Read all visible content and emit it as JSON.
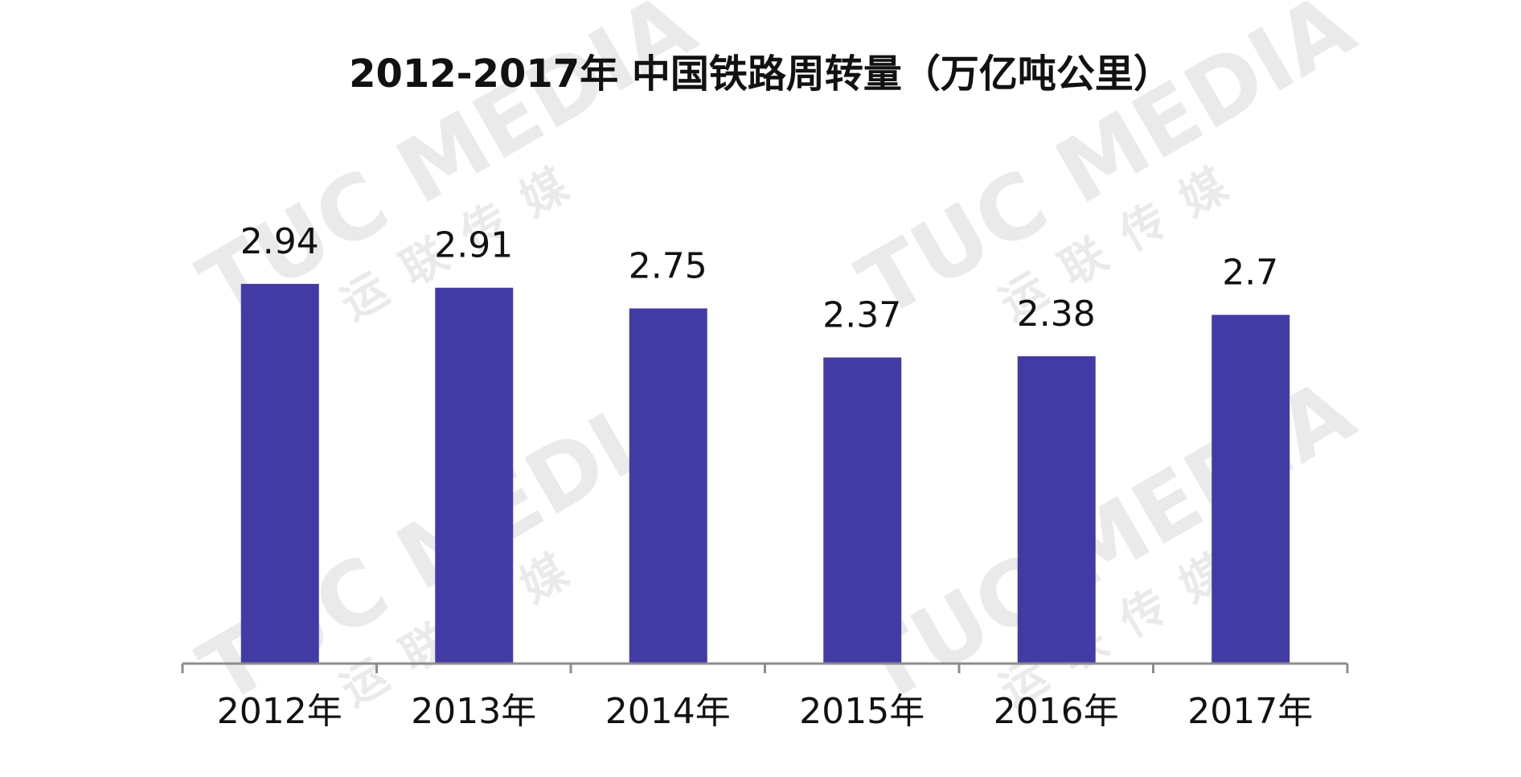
{
  "chart_data": {
    "type": "bar",
    "title": "2012-2017年 中国铁路周转量（万亿吨公里）",
    "categories": [
      "2012年",
      "2013年",
      "2014年",
      "2015年",
      "2016年",
      "2017年"
    ],
    "values": [
      2.94,
      2.91,
      2.75,
      2.37,
      2.38,
      2.7
    ],
    "color": "#433ba4",
    "ylim": [
      0,
      3.5
    ]
  },
  "watermark": {
    "brand": "TUC MEDIA",
    "name": "运联传媒"
  }
}
